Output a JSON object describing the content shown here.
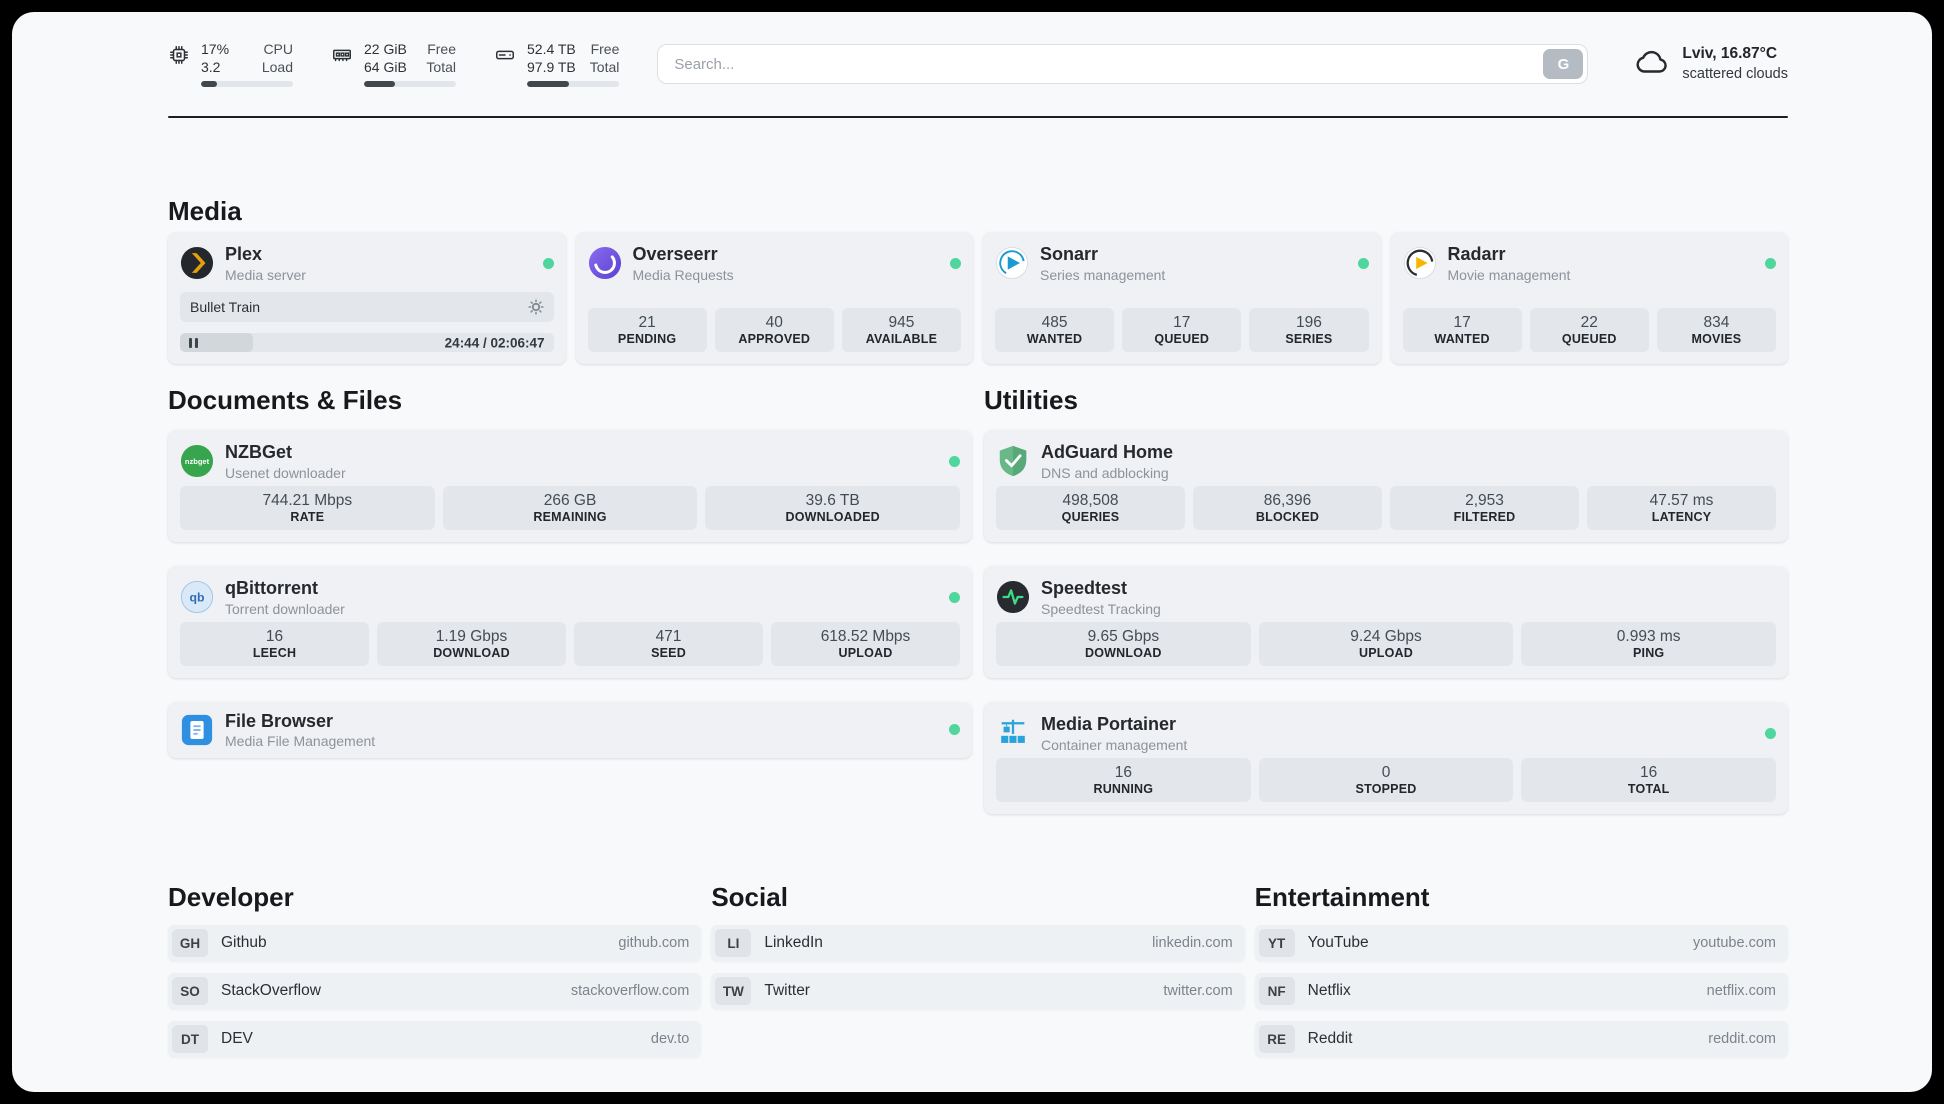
{
  "header": {
    "cpu": {
      "value_top": "17%",
      "value_bottom": "3.2",
      "label_top": "CPU",
      "label_bottom": "Load",
      "progress": 17
    },
    "ram": {
      "value_top": "22 GiB",
      "value_bottom": "64 GiB",
      "label_top": "Free",
      "label_bottom": "Total",
      "progress": 34
    },
    "disk": {
      "value_top": "52.4 TB",
      "value_bottom": "97.9 TB",
      "label_top": "Free",
      "label_bottom": "Total",
      "progress": 46
    },
    "search": {
      "placeholder": "Search...",
      "button_label": "G"
    },
    "weather": {
      "location": "Lviv, 16.87°C",
      "condition": "scattered clouds"
    }
  },
  "colors": {
    "status_online": "#4fd69c",
    "plex_brand": "#e5a00d"
  },
  "sections": {
    "media": {
      "title": "Media",
      "plex": {
        "name": "Plex",
        "subtitle": "Media server",
        "now_playing": "Bullet Train",
        "time": "24:44 / 02:06:47",
        "progress": 19.5
      },
      "apps": [
        {
          "name": "Overseerr",
          "subtitle": "Media Requests",
          "stats": [
            {
              "value": "21",
              "label": "PENDING"
            },
            {
              "value": "40",
              "label": "APPROVED"
            },
            {
              "value": "945",
              "label": "AVAILABLE"
            }
          ]
        },
        {
          "name": "Sonarr",
          "subtitle": "Series management",
          "stats": [
            {
              "value": "485",
              "label": "WANTED"
            },
            {
              "value": "17",
              "label": "QUEUED"
            },
            {
              "value": "196",
              "label": "SERIES"
            }
          ]
        },
        {
          "name": "Radarr",
          "subtitle": "Movie management",
          "stats": [
            {
              "value": "17",
              "label": "WANTED"
            },
            {
              "value": "22",
              "label": "QUEUED"
            },
            {
              "value": "834",
              "label": "MOVIES"
            }
          ]
        }
      ]
    },
    "documents": {
      "title": "Documents & Files",
      "apps": [
        {
          "name": "NZBGet",
          "subtitle": "Usenet downloader",
          "stats": [
            {
              "value": "744.21 Mbps",
              "label": "RATE"
            },
            {
              "value": "266 GB",
              "label": "REMAINING"
            },
            {
              "value": "39.6 TB",
              "label": "DOWNLOADED"
            }
          ]
        },
        {
          "name": "qBittorrent",
          "subtitle": "Torrent downloader",
          "stats": [
            {
              "value": "16",
              "label": "LEECH"
            },
            {
              "value": "1.19 Gbps",
              "label": "DOWNLOAD"
            },
            {
              "value": "471",
              "label": "SEED"
            },
            {
              "value": "618.52 Mbps",
              "label": "UPLOAD"
            }
          ]
        },
        {
          "name": "File Browser",
          "subtitle": "Media File Management",
          "stats": []
        }
      ]
    },
    "utilities": {
      "title": "Utilities",
      "apps": [
        {
          "name": "AdGuard Home",
          "subtitle": "DNS and adblocking",
          "stats": [
            {
              "value": "498,508",
              "label": "QUERIES"
            },
            {
              "value": "86,396",
              "label": "BLOCKED"
            },
            {
              "value": "2,953",
              "label": "FILTERED"
            },
            {
              "value": "47.57 ms",
              "label": "LATENCY"
            }
          ]
        },
        {
          "name": "Speedtest",
          "subtitle": "Speedtest Tracking",
          "stats": [
            {
              "value": "9.65 Gbps",
              "label": "DOWNLOAD"
            },
            {
              "value": "9.24 Gbps",
              "label": "UPLOAD"
            },
            {
              "value": "0.993 ms",
              "label": "PING"
            }
          ]
        },
        {
          "name": "Media Portainer",
          "subtitle": "Container management",
          "stats": [
            {
              "value": "16",
              "label": "RUNNING"
            },
            {
              "value": "0",
              "label": "STOPPED"
            },
            {
              "value": "16",
              "label": "TOTAL"
            }
          ]
        }
      ]
    },
    "bookmarks": [
      {
        "title": "Developer",
        "items": [
          {
            "abbr": "GH",
            "name": "Github",
            "url": "github.com"
          },
          {
            "abbr": "SO",
            "name": "StackOverflow",
            "url": "stackoverflow.com"
          },
          {
            "abbr": "DT",
            "name": "DEV",
            "url": "dev.to"
          }
        ]
      },
      {
        "title": "Social",
        "items": [
          {
            "abbr": "LI",
            "name": "LinkedIn",
            "url": "linkedin.com"
          },
          {
            "abbr": "TW",
            "name": "Twitter",
            "url": "twitter.com"
          }
        ]
      },
      {
        "title": "Entertainment",
        "items": [
          {
            "abbr": "YT",
            "name": "YouTube",
            "url": "youtube.com"
          },
          {
            "abbr": "NF",
            "name": "Netflix",
            "url": "netflix.com"
          },
          {
            "abbr": "RE",
            "name": "Reddit",
            "url": "reddit.com"
          }
        ]
      }
    ]
  }
}
